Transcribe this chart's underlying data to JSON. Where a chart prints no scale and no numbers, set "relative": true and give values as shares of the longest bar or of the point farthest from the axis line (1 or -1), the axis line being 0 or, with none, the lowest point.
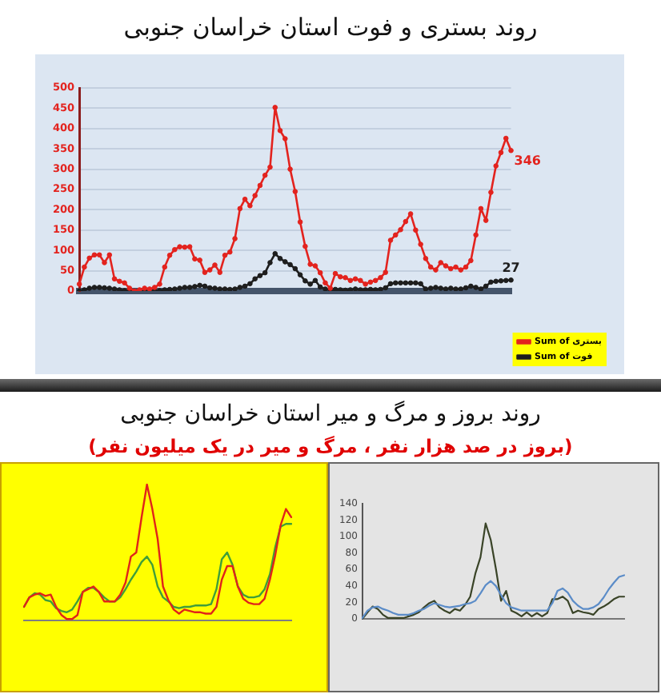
{
  "chart_data": [
    {
      "type": "line",
      "title": "روند بستری و فوت استان خراسان جنوبی",
      "categories": [
        null,
        null,
        null,
        null,
        null,
        null,
        null,
        null,
        null,
        null,
        null,
        null,
        null,
        null,
        null,
        null,
        null,
        null,
        null,
        null,
        null,
        null,
        null,
        null,
        null,
        null,
        null,
        null,
        null,
        null,
        null,
        null,
        null,
        null,
        null,
        null,
        null,
        null,
        null,
        null,
        null,
        null,
        null,
        null,
        null,
        null,
        null,
        null,
        null,
        null,
        null,
        null,
        null,
        null,
        null,
        null,
        null,
        null,
        null,
        null,
        null,
        null,
        null,
        null,
        null,
        null,
        null,
        null,
        null,
        null,
        null,
        null,
        null,
        null,
        null,
        null,
        null,
        null,
        null,
        null,
        null,
        null,
        null,
        null,
        null,
        null,
        null
      ],
      "series": [
        {
          "name": "Sum of بستری",
          "color": "#e3231e",
          "values": [
            17,
            59,
            81,
            89,
            89,
            70,
            89,
            30,
            24,
            20,
            7,
            0,
            3,
            7,
            5,
            9,
            17,
            59,
            88,
            102,
            109,
            108,
            109,
            79,
            76,
            46,
            52,
            64,
            46,
            88,
            96,
            129,
            203,
            226,
            210,
            235,
            260,
            285,
            305,
            452,
            395,
            375,
            300,
            245,
            170,
            110,
            66,
            62,
            45,
            20,
            7,
            43,
            35,
            33,
            26,
            30,
            26,
            17,
            22,
            26,
            33,
            46,
            125,
            138,
            151,
            171,
            190,
            150,
            115,
            80,
            59,
            52,
            70,
            62,
            55,
            59,
            52,
            59,
            75,
            138,
            203,
            174,
            243,
            308,
            341,
            376,
            346
          ],
          "value_labels": [
            null,
            null,
            null,
            null,
            null,
            null,
            null,
            null,
            null,
            null,
            null,
            null,
            null,
            null,
            null,
            null,
            null,
            null,
            null,
            null,
            null,
            null,
            null,
            null,
            null,
            null,
            null,
            null,
            null,
            null,
            null,
            null,
            null,
            null,
            null,
            null,
            null,
            null,
            null,
            null,
            null,
            null,
            null,
            null,
            null,
            null,
            null,
            null,
            null,
            null,
            null,
            null,
            null,
            null,
            null,
            null,
            null,
            null,
            null,
            null,
            null,
            null,
            null,
            null,
            null,
            null,
            null,
            null,
            null,
            null,
            null,
            null,
            null,
            null,
            null,
            null,
            null,
            null,
            null,
            null,
            null,
            null,
            null,
            null,
            null,
            null,
            "346"
          ]
        },
        {
          "name": "Sum of فوت",
          "color": "#1e1e1e",
          "values": [
            0,
            3,
            7,
            9,
            9,
            8,
            7,
            5,
            3,
            1,
            0,
            0,
            0,
            0,
            0,
            0,
            1,
            3,
            4,
            5,
            7,
            9,
            9,
            11,
            14,
            12,
            8,
            7,
            5,
            5,
            4,
            5,
            9,
            12,
            18,
            30,
            38,
            45,
            70,
            92,
            80,
            72,
            65,
            55,
            40,
            25,
            17,
            26,
            10,
            5,
            3,
            4,
            3,
            2,
            3,
            5,
            3,
            3,
            4,
            3,
            4,
            8,
            18,
            20,
            20,
            20,
            20,
            20,
            18,
            5,
            7,
            9,
            7,
            5,
            7,
            5,
            5,
            8,
            12,
            9,
            5,
            12,
            22,
            24,
            25,
            26,
            27
          ],
          "value_labels": [
            null,
            null,
            null,
            null,
            null,
            null,
            null,
            null,
            null,
            null,
            null,
            null,
            null,
            null,
            null,
            null,
            null,
            null,
            null,
            null,
            null,
            null,
            null,
            null,
            null,
            null,
            null,
            null,
            null,
            null,
            null,
            null,
            null,
            null,
            null,
            null,
            null,
            null,
            null,
            null,
            null,
            null,
            null,
            null,
            null,
            null,
            null,
            null,
            null,
            null,
            null,
            null,
            null,
            null,
            null,
            null,
            null,
            null,
            null,
            null,
            null,
            null,
            null,
            null,
            null,
            null,
            null,
            null,
            null,
            null,
            null,
            null,
            null,
            null,
            null,
            null,
            null,
            null,
            null,
            null,
            null,
            null,
            null,
            null,
            null,
            null,
            "27"
          ]
        }
      ],
      "ylim": [
        0,
        500
      ],
      "yticks": [
        0,
        50,
        100,
        150,
        200,
        250,
        300,
        350,
        400,
        450,
        500
      ],
      "grid": "y",
      "legend": "bottom right",
      "marker": "circle"
    },
    {
      "type": "line",
      "title": "روند بروز و مرگ و میر استان خراسان جنوبی",
      "subtitle": "(بروز در صد هزار نفر ، مرگ و میر در یک میلیون نفر)",
      "relative": true,
      "categories": [
        null,
        null,
        null,
        null,
        null,
        null,
        null,
        null,
        null,
        null,
        null,
        null,
        null,
        null,
        null,
        null,
        null,
        null,
        null,
        null,
        null,
        null,
        null,
        null,
        null,
        null,
        null,
        null,
        null,
        null,
        null,
        null,
        null,
        null,
        null,
        null,
        null,
        null,
        null,
        null,
        null,
        null,
        null,
        null,
        null,
        null,
        null,
        null,
        null,
        null,
        null
      ],
      "series": [
        {
          "color": "#e0231a",
          "values": [
            0.1,
            0.17,
            0.19,
            0.2,
            0.18,
            0.19,
            0.1,
            0.04,
            0.01,
            0.01,
            0.04,
            0.21,
            0.23,
            0.25,
            0.21,
            0.14,
            0.14,
            0.14,
            0.19,
            0.28,
            0.47,
            0.5,
            0.76,
            1,
            0.82,
            0.6,
            0.25,
            0.15,
            0.08,
            0.05,
            0.08,
            0.07,
            0.06,
            0.06,
            0.05,
            0.05,
            0.1,
            0.3,
            0.4,
            0.4,
            0.25,
            0.16,
            0.13,
            0.12,
            0.12,
            0.16,
            0.3,
            0.48,
            0.7,
            0.82,
            0.76
          ]
        },
        {
          "color": "#3f9e3a",
          "values": [
            0.1,
            0.17,
            0.2,
            0.19,
            0.15,
            0.14,
            0.09,
            0.07,
            0.06,
            0.08,
            0.14,
            0.21,
            0.24,
            0.24,
            0.21,
            0.17,
            0.14,
            0.14,
            0.17,
            0.23,
            0.3,
            0.36,
            0.43,
            0.47,
            0.41,
            0.25,
            0.17,
            0.14,
            0.1,
            0.09,
            0.1,
            0.1,
            0.11,
            0.11,
            0.11,
            0.12,
            0.23,
            0.45,
            0.5,
            0.41,
            0.25,
            0.19,
            0.17,
            0.17,
            0.18,
            0.23,
            0.34,
            0.54,
            0.69,
            0.71,
            0.71
          ]
        }
      ]
    },
    {
      "type": "line",
      "categories": [
        null,
        null,
        null,
        null,
        null,
        null,
        null,
        null,
        null,
        null,
        null,
        null,
        null,
        null,
        null,
        null,
        null,
        null,
        null,
        null,
        null,
        null,
        null,
        null,
        null,
        null,
        null,
        null,
        null,
        null,
        null,
        null,
        null,
        null,
        null,
        null,
        null,
        null,
        null,
        null,
        null,
        null,
        null,
        null,
        null,
        null,
        null,
        null,
        null,
        null,
        null,
        null
      ],
      "series": [
        {
          "color": "#5b8cc8",
          "values": [
            1,
            10,
            14,
            15,
            12,
            10,
            7,
            5,
            5,
            5,
            7,
            10,
            12,
            16,
            19,
            17,
            15,
            14,
            15,
            16,
            18,
            19,
            22,
            31,
            41,
            46,
            40,
            29,
            19,
            14,
            12,
            10,
            10,
            10,
            10,
            10,
            10,
            19,
            34,
            37,
            32,
            22,
            16,
            12,
            12,
            14,
            18,
            26,
            36,
            44,
            51,
            53
          ]
        },
        {
          "color": "#3a4428",
          "values": [
            0,
            8,
            15,
            12,
            5,
            1,
            1,
            1,
            1,
            3,
            5,
            8,
            14,
            19,
            22,
            14,
            10,
            7,
            12,
            10,
            17,
            27,
            55,
            75,
            116,
            96,
            61,
            22,
            34,
            10,
            7,
            3,
            8,
            3,
            7,
            3,
            7,
            24,
            24,
            27,
            22,
            7,
            10,
            8,
            7,
            5,
            12,
            15,
            19,
            24,
            27,
            27
          ]
        }
      ],
      "ylim": [
        0,
        140
      ],
      "yticks": [
        0,
        20,
        40,
        60,
        80,
        100,
        120,
        140
      ]
    }
  ]
}
